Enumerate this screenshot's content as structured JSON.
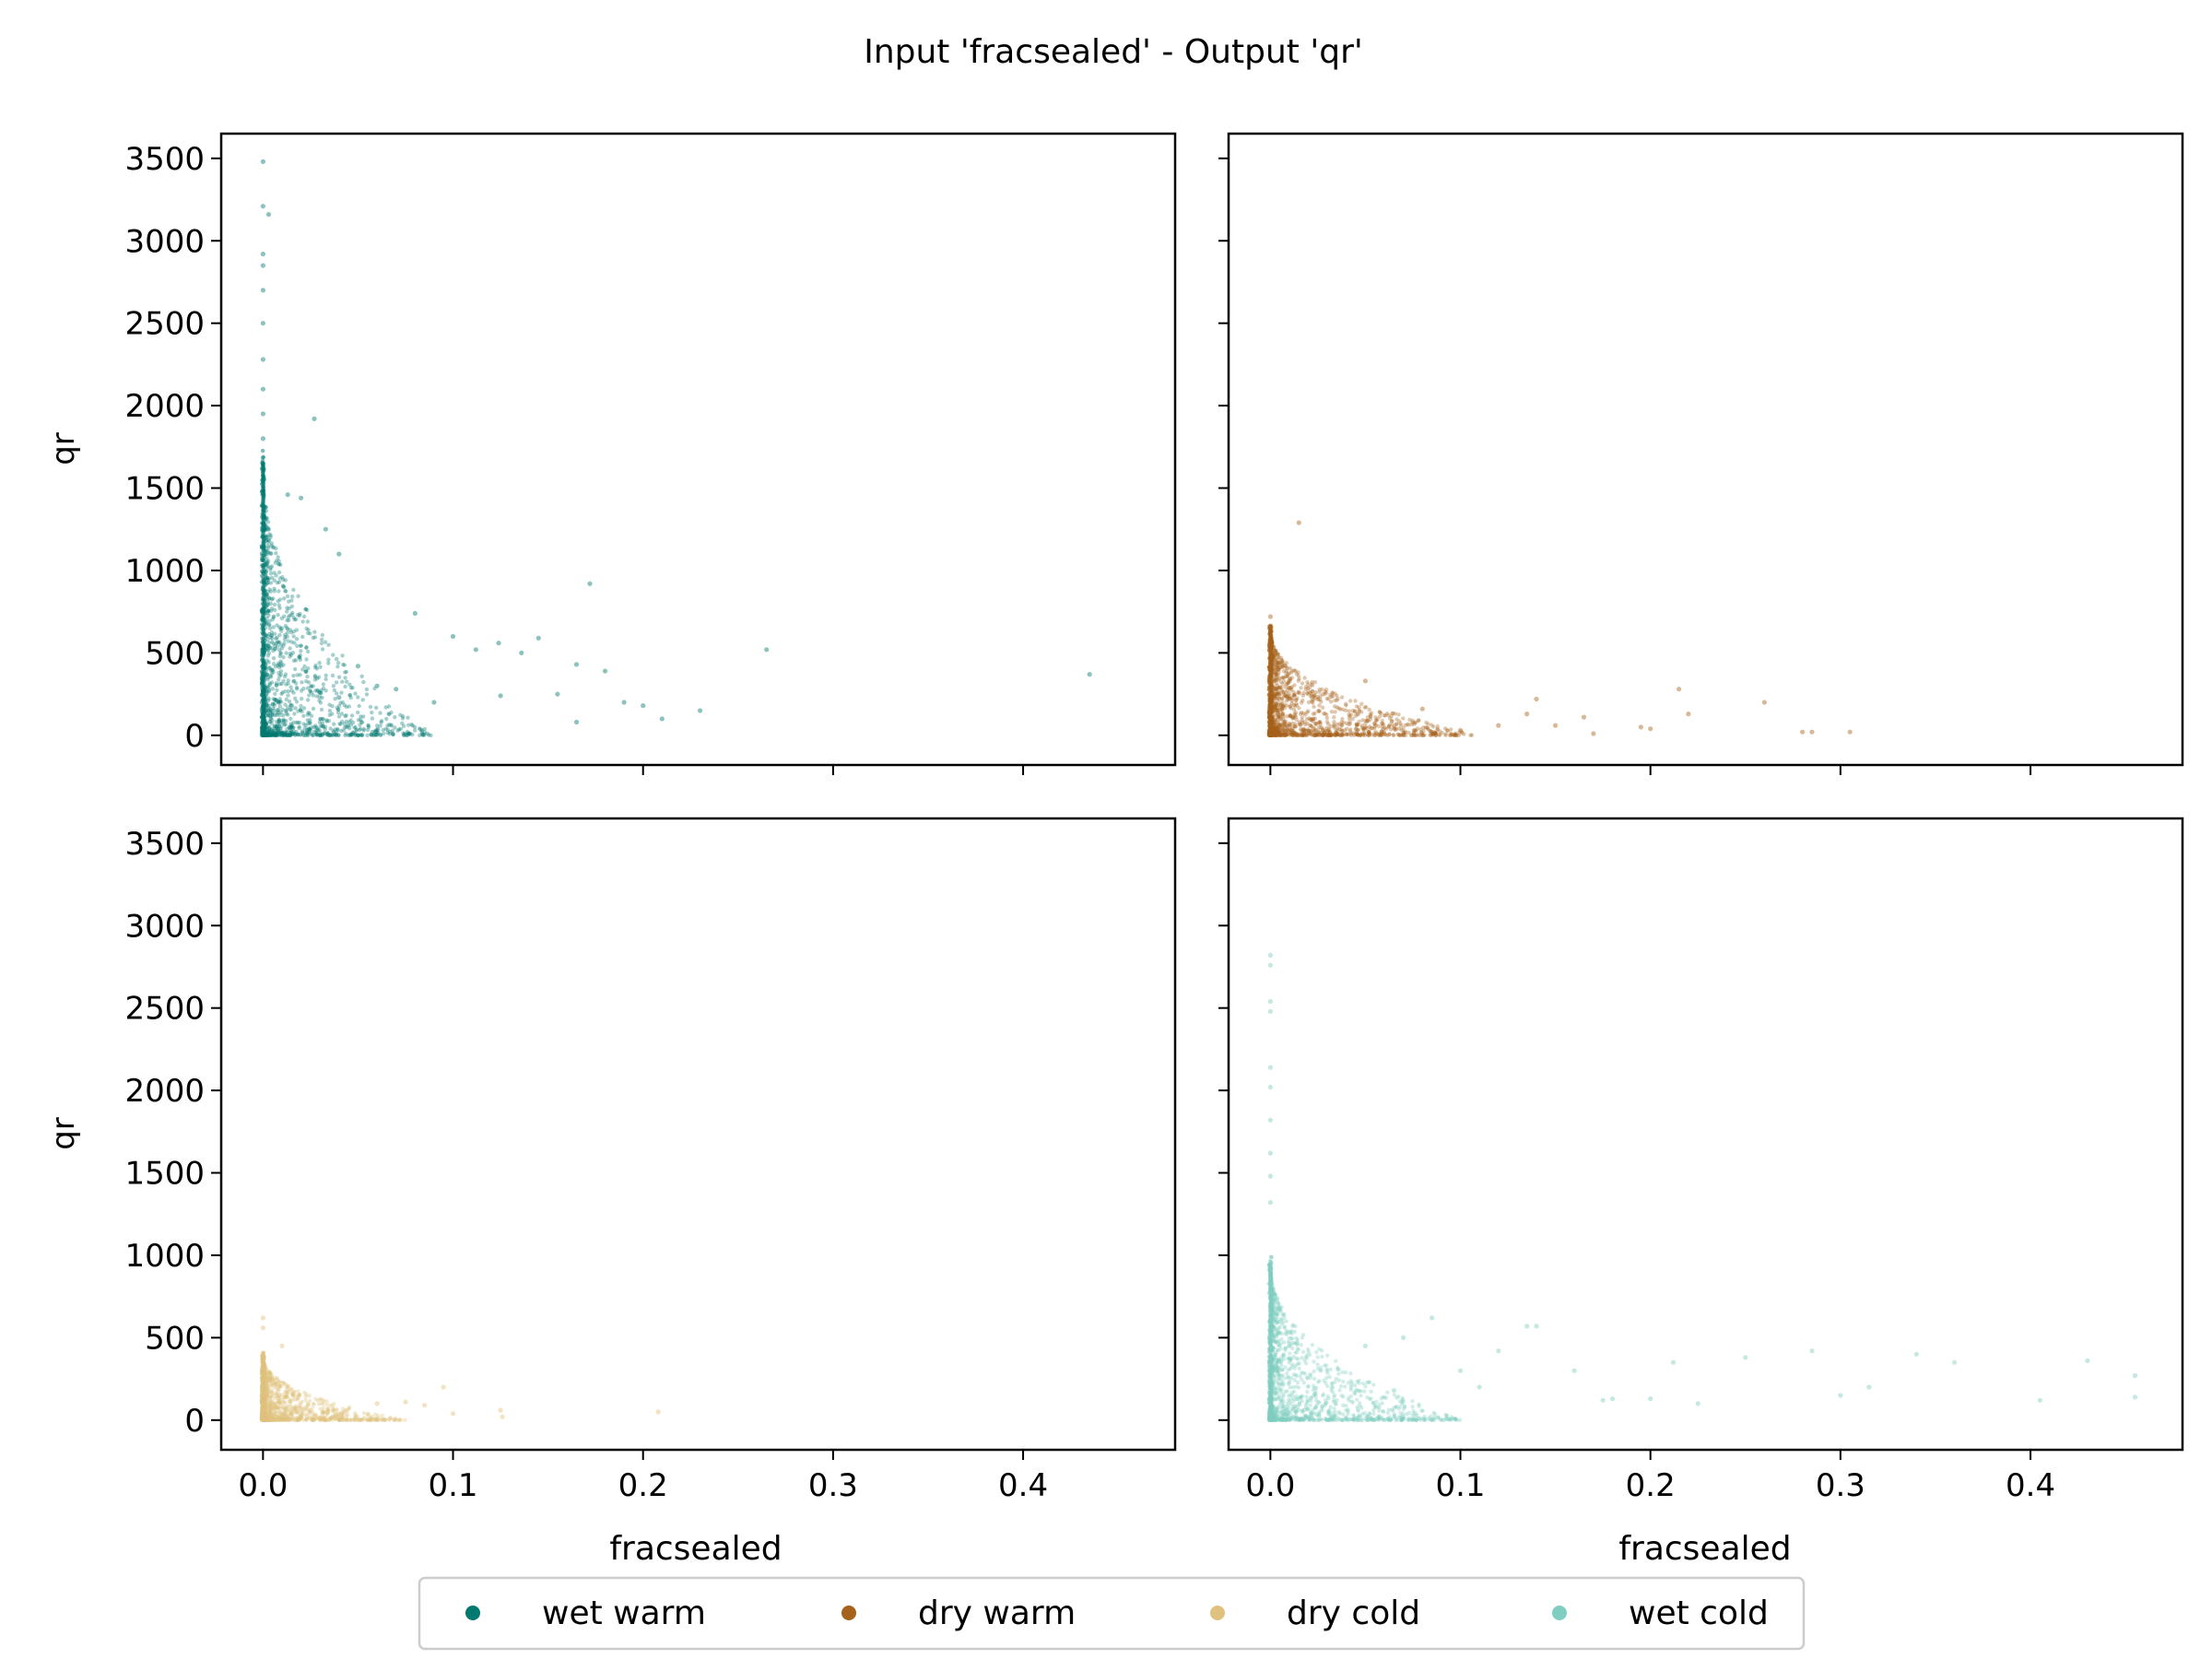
{
  "colors": {
    "wet_warm": "#01796f",
    "dry_warm": "#a6611a",
    "dry_cold": "#dfc27d",
    "wet_cold": "#80cdc1"
  },
  "chart_data": {
    "type": "scatter",
    "title": "Input 'fracsealed' - Output 'qr'",
    "xlabel": "fracsealed",
    "ylabel": "qr",
    "xlim": [
      -0.022,
      0.48
    ],
    "ylim": [
      -180,
      3650
    ],
    "xticks": [
      0.0,
      0.1,
      0.2,
      0.3,
      0.4
    ],
    "xtick_labels": [
      "0.0",
      "0.1",
      "0.2",
      "0.3",
      "0.4"
    ],
    "yticks": [
      0,
      500,
      1000,
      1500,
      2000,
      2500,
      3000,
      3500
    ],
    "ytick_labels": [
      "0",
      "500",
      "1000",
      "1500",
      "2000",
      "2500",
      "3000",
      "3500"
    ],
    "grid": false,
    "legend": {
      "position": "bottom-center",
      "entries": [
        "wet warm",
        "dry warm",
        "dry cold",
        "wet cold"
      ]
    },
    "panels": [
      {
        "series": "wet warm",
        "color": "#01796f",
        "points": [
          [
            0.0,
            3480
          ],
          [
            0.0,
            3210
          ],
          [
            0.003,
            3160
          ],
          [
            0.0,
            2920
          ],
          [
            0.0,
            2850
          ],
          [
            0.0,
            2700
          ],
          [
            0.0,
            2500
          ],
          [
            0.0,
            2280
          ],
          [
            0.0,
            2100
          ],
          [
            0.0,
            1950
          ],
          [
            0.027,
            1920
          ],
          [
            0.0,
            1800
          ],
          [
            0.0,
            1650
          ],
          [
            0.013,
            1460
          ],
          [
            0.02,
            1440
          ],
          [
            0.033,
            1250
          ],
          [
            0.04,
            1100
          ],
          [
            0.172,
            920
          ],
          [
            0.08,
            740
          ],
          [
            0.1,
            600
          ],
          [
            0.112,
            520
          ],
          [
            0.124,
            560
          ],
          [
            0.136,
            500
          ],
          [
            0.145,
            590
          ],
          [
            0.165,
            430
          ],
          [
            0.18,
            390
          ],
          [
            0.19,
            200
          ],
          [
            0.2,
            180
          ],
          [
            0.21,
            100
          ],
          [
            0.23,
            150
          ],
          [
            0.265,
            520
          ],
          [
            0.435,
            370
          ],
          [
            0.165,
            80
          ],
          [
            0.06,
            300
          ],
          [
            0.07,
            280
          ],
          [
            0.05,
            420
          ],
          [
            0.09,
            200
          ],
          [
            0.125,
            240
          ],
          [
            0.155,
            250
          ],
          [
            0.04,
            230
          ],
          [
            0.03,
            260
          ],
          [
            0.015,
            180
          ]
        ],
        "cloud": {
          "x_max": 0.09,
          "y_max": 1650,
          "count": 1400
        }
      },
      {
        "series": "dry warm",
        "color": "#a6611a",
        "points": [
          [
            0.015,
            1290
          ],
          [
            0.0,
            720
          ],
          [
            0.0,
            650
          ],
          [
            0.05,
            330
          ],
          [
            0.08,
            160
          ],
          [
            0.1,
            30
          ],
          [
            0.12,
            60
          ],
          [
            0.135,
            130
          ],
          [
            0.14,
            220
          ],
          [
            0.15,
            60
          ],
          [
            0.165,
            110
          ],
          [
            0.17,
            10
          ],
          [
            0.195,
            50
          ],
          [
            0.2,
            40
          ],
          [
            0.215,
            280
          ],
          [
            0.22,
            130
          ],
          [
            0.26,
            200
          ],
          [
            0.28,
            20
          ],
          [
            0.285,
            20
          ],
          [
            0.305,
            20
          ]
        ],
        "cloud": {
          "x_max": 0.11,
          "y_max": 640,
          "count": 1400
        }
      },
      {
        "series": "dry cold",
        "color": "#dfc27d",
        "points": [
          [
            0.0,
            620
          ],
          [
            0.0,
            560
          ],
          [
            0.01,
            450
          ],
          [
            0.06,
            100
          ],
          [
            0.075,
            110
          ],
          [
            0.085,
            90
          ],
          [
            0.095,
            200
          ],
          [
            0.1,
            40
          ],
          [
            0.125,
            60
          ],
          [
            0.126,
            20
          ],
          [
            0.208,
            50
          ]
        ],
        "cloud": {
          "x_max": 0.075,
          "y_max": 390,
          "count": 1100
        }
      },
      {
        "series": "wet cold",
        "color": "#80cdc1",
        "points": [
          [
            0.0,
            2820
          ],
          [
            0.0,
            2760
          ],
          [
            0.0,
            2540
          ],
          [
            0.0,
            2480
          ],
          [
            0.0,
            2140
          ],
          [
            0.0,
            2020
          ],
          [
            0.0,
            1820
          ],
          [
            0.0,
            1620
          ],
          [
            0.0,
            1480
          ],
          [
            0.0,
            1320
          ],
          [
            0.085,
            620
          ],
          [
            0.135,
            570
          ],
          [
            0.14,
            570
          ],
          [
            0.175,
            120
          ],
          [
            0.18,
            130
          ],
          [
            0.2,
            130
          ],
          [
            0.212,
            350
          ],
          [
            0.225,
            100
          ],
          [
            0.25,
            380
          ],
          [
            0.285,
            420
          ],
          [
            0.3,
            150
          ],
          [
            0.315,
            200
          ],
          [
            0.34,
            400
          ],
          [
            0.36,
            350
          ],
          [
            0.405,
            120
          ],
          [
            0.43,
            360
          ],
          [
            0.455,
            270
          ],
          [
            0.455,
            140
          ],
          [
            0.1,
            300
          ],
          [
            0.12,
            420
          ],
          [
            0.16,
            300
          ],
          [
            0.07,
            500
          ],
          [
            0.065,
            180
          ],
          [
            0.05,
            450
          ],
          [
            0.11,
            200
          ]
        ],
        "cloud": {
          "x_max": 0.1,
          "y_max": 950,
          "count": 1400
        }
      }
    ]
  }
}
